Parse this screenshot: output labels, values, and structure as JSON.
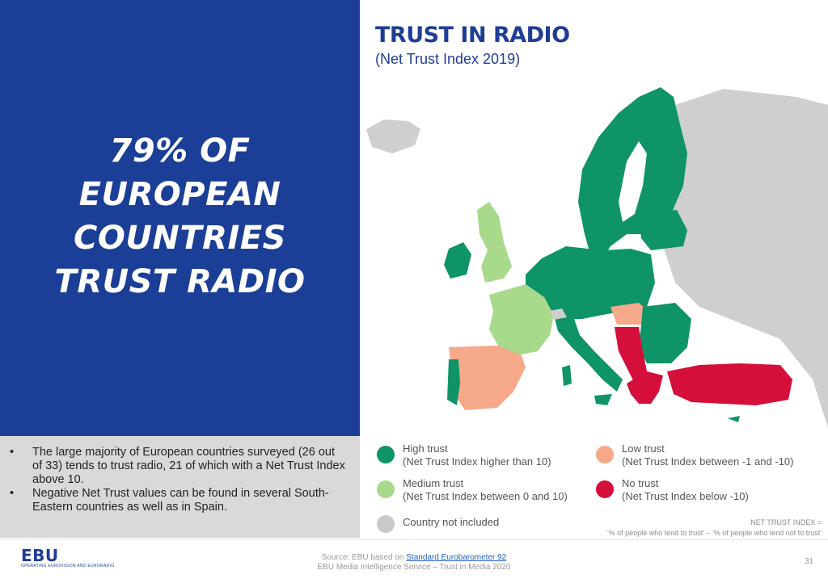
{
  "headline": [
    "79% OF",
    "EUROPEAN",
    "COUNTRIES",
    "TRUST RADIO"
  ],
  "title": "TRUST IN RADIO",
  "subtitle": "(Net Trust Index 2019)",
  "bullets": [
    "The large majority of European countries surveyed (26 out of 33) tends to trust radio, 21 of which with a Net Trust Index above 10.",
    "Negative Net Trust values can be found in several South-Eastern countries as well as in Spain."
  ],
  "legend": [
    {
      "label": "High trust",
      "desc": "(Net Trust Index higher than 10)",
      "color": "#0f9467"
    },
    {
      "label": "Medium trust",
      "desc": "(Net Trust Index between 0 and 10)",
      "color": "#a9d98a"
    },
    {
      "label": "Country not included",
      "desc": "",
      "color": "#c9c9c9"
    },
    {
      "label": "Low trust",
      "desc": "(Net Trust Index between -1 and -10)",
      "color": "#f5a98a"
    },
    {
      "label": "No trust",
      "desc": "(Net Trust Index below -10)",
      "color": "#d40f3a"
    }
  ],
  "nti": {
    "line1": "NET TRUST INDEX =",
    "line2": "'% of people who tend to trust' – '% of people who tend not to trust'"
  },
  "logo": {
    "main": "EBU",
    "sub": "OPERATING EUROVISION AND EURORADIO"
  },
  "footer": {
    "source_prefix": "Source: EBU based on ",
    "source_link": "Standard Eurobarometer 92",
    "line2": "EBU Media Intelligence Service – Trust in Media 2020"
  },
  "page_number": "31",
  "colors": {
    "brand_blue": "#1b3f96",
    "high": "#0f9467",
    "medium": "#a9d98a",
    "low": "#f5a98a",
    "none": "#d40f3a",
    "excluded": "#c9c9c9"
  }
}
